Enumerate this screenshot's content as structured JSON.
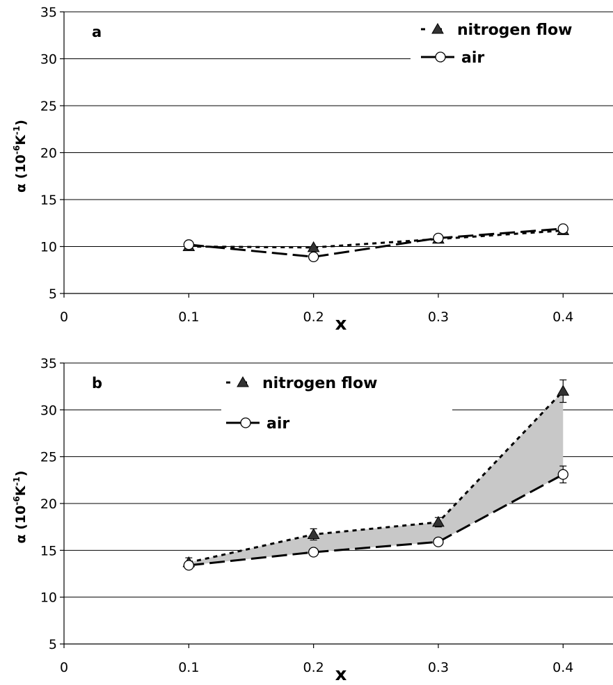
{
  "chart_data": [
    {
      "type": "line",
      "panel_label": "a",
      "x": [
        0.1,
        0.2,
        0.3,
        0.4
      ],
      "series": [
        {
          "name": "nitrogen flow",
          "values": [
            10.0,
            9.9,
            10.8,
            11.7
          ],
          "marker": "filled-triangle",
          "line": "short-dash"
        },
        {
          "name": "air",
          "values": [
            10.2,
            8.9,
            10.9,
            11.9
          ],
          "marker": "open-circle",
          "line": "long-dash"
        }
      ],
      "shaded_between_series": false,
      "xlabel": "x",
      "ylabel": "α (10",
      "ylabel_exp": "-6",
      "ylabel_unit": "K",
      "ylabel_unit_exp": "-1",
      "ylabel_close": ")",
      "xlim": [
        0,
        0.44
      ],
      "ylim": [
        5,
        35
      ],
      "xticks": [
        "0",
        "0.1",
        "0.2",
        "0.3",
        "0.4"
      ],
      "yticks": [
        "5",
        "10",
        "15",
        "20",
        "25",
        "30",
        "35"
      ],
      "grid": true,
      "legend_position": "top-right"
    },
    {
      "type": "line",
      "panel_label": "b",
      "x": [
        0.1,
        0.2,
        0.3,
        0.4
      ],
      "series": [
        {
          "name": "nitrogen flow",
          "values": [
            13.7,
            16.7,
            18.0,
            32.0
          ],
          "errors": [
            0.5,
            0.6,
            0.5,
            1.2
          ],
          "marker": "filled-triangle",
          "line": "short-dash"
        },
        {
          "name": "air",
          "values": [
            13.4,
            14.8,
            15.9,
            23.1
          ],
          "errors": [
            0.3,
            0.3,
            0.3,
            0.9
          ],
          "marker": "open-circle",
          "line": "long-dash"
        }
      ],
      "shaded_between_series": true,
      "xlabel": "x",
      "ylabel": "α (10",
      "ylabel_exp": "-6",
      "ylabel_unit": "K",
      "ylabel_unit_exp": "-1",
      "ylabel_close": ")",
      "xlim": [
        0,
        0.44
      ],
      "ylim": [
        5,
        35
      ],
      "xticks": [
        "0",
        "0.1",
        "0.2",
        "0.3",
        "0.4"
      ],
      "yticks": [
        "5",
        "10",
        "15",
        "20",
        "25",
        "30",
        "35"
      ],
      "grid": true,
      "legend_position": "top-center"
    }
  ]
}
